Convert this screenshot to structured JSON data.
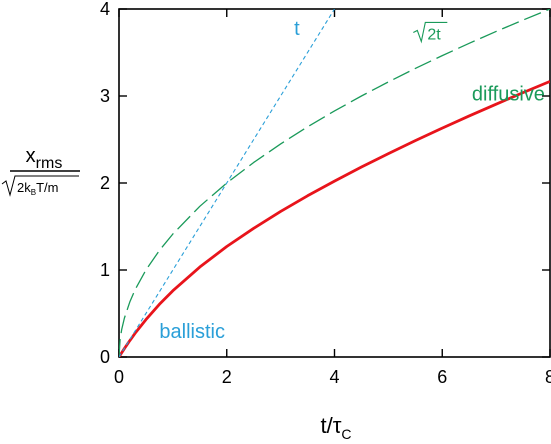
{
  "chart_data": {
    "type": "line",
    "xlabel": {
      "main": "t/τ",
      "sub": "C"
    },
    "ylabel": {
      "numerator_main": "x",
      "numerator_sub": "rms",
      "denominator": {
        "prefix": "2k",
        "sub": "B",
        "suffix": "T/m"
      }
    },
    "xlim": [
      0,
      8
    ],
    "ylim": [
      0,
      4
    ],
    "x_ticks": [
      "0",
      "2",
      "4",
      "6",
      "8"
    ],
    "y_ticks": [
      "0",
      "1",
      "2",
      "3",
      "4"
    ],
    "x_tick_values": [
      0,
      2,
      4,
      6,
      8
    ],
    "y_tick_values": [
      0,
      1,
      2,
      3,
      4
    ],
    "grid": false,
    "series": [
      {
        "style": "solid",
        "color": "#e8141b",
        "x": [
          0,
          0.05,
          0.1,
          0.2,
          0.3,
          0.5,
          0.75,
          1,
          1.5,
          2,
          2.5,
          3,
          3.5,
          4,
          4.5,
          5,
          5.5,
          6,
          6.5,
          7,
          7.5,
          8
        ],
        "y": [
          0,
          0.049,
          0.097,
          0.188,
          0.274,
          0.43,
          0.606,
          0.762,
          1.034,
          1.27,
          1.479,
          1.673,
          1.853,
          2.022,
          2.184,
          2.338,
          2.487,
          2.631,
          2.771,
          2.906,
          3.039,
          3.168
        ]
      },
      {
        "style": "long-dash",
        "color": "#1a9a5a",
        "x": [
          0,
          0.02,
          0.05,
          0.1,
          0.2,
          0.3,
          0.5,
          0.75,
          1,
          1.5,
          2,
          2.5,
          3,
          3.5,
          4,
          4.5,
          5,
          5.5,
          6,
          6.5,
          7,
          7.5,
          8
        ],
        "y": [
          0,
          0.2,
          0.316,
          0.447,
          0.632,
          0.775,
          1.0,
          1.225,
          1.414,
          1.732,
          2.0,
          2.236,
          2.449,
          2.646,
          2.828,
          3.0,
          3.162,
          3.317,
          3.464,
          3.606,
          3.742,
          3.873,
          4.0
        ]
      },
      {
        "style": "short-dash",
        "color": "#2a9fd8",
        "x": [
          0,
          4
        ],
        "y": [
          0,
          4
        ]
      }
    ],
    "annotations": [
      {
        "text": "t",
        "x": 3.25,
        "y": 3.7,
        "color": "#2a9fd8"
      },
      {
        "text": "2t",
        "x": 5.5,
        "y": 3.65,
        "color": "#1a9a5a",
        "sqrt": true
      },
      {
        "text": "diffusive",
        "x": 6.55,
        "y": 2.95,
        "color": "#1a9a5a"
      },
      {
        "text": "ballistic",
        "x": 0.75,
        "y": 0.22,
        "color": "#2a9fd8"
      }
    ]
  }
}
